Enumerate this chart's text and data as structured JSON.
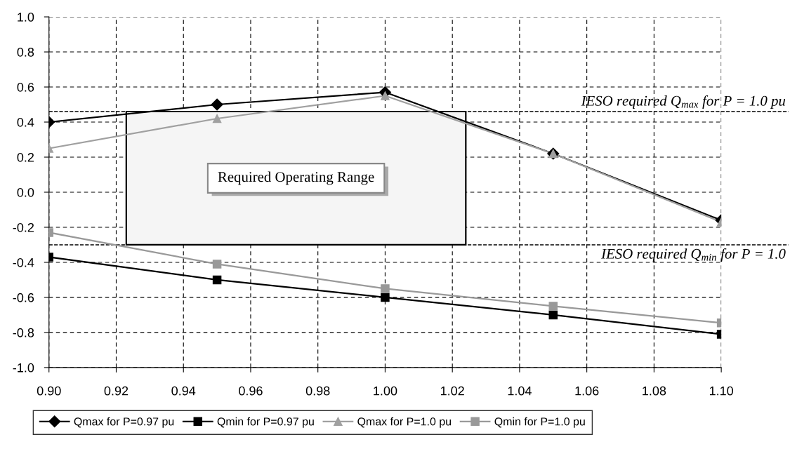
{
  "chart_data": {
    "type": "line",
    "x": [
      0.9,
      0.95,
      1.0,
      1.05,
      1.1
    ],
    "series": [
      {
        "name": "Qmax for P=0.97 pu",
        "color": "#000000",
        "marker": "diamond",
        "values": [
          0.4,
          0.5,
          0.57,
          0.22,
          -0.16
        ]
      },
      {
        "name": "Qmin for P=0.97 pu",
        "color": "#000000",
        "marker": "square",
        "values": [
          -0.37,
          -0.5,
          -0.6,
          -0.7,
          -0.81
        ]
      },
      {
        "name": "Qmax for P=1.0 pu",
        "color": "#a0a0a0",
        "marker": "triangle",
        "values": [
          0.25,
          0.42,
          0.55,
          0.22,
          -0.17
        ]
      },
      {
        "name": "Qmin for P=1.0 pu",
        "color": "#999999",
        "marker": "square",
        "values": [
          -0.23,
          -0.41,
          -0.55,
          -0.65,
          -0.745
        ]
      }
    ],
    "xlim": [
      0.9,
      1.1
    ],
    "xticks": [
      {
        "value": 0.9,
        "label": "0.90"
      },
      {
        "value": 0.92,
        "label": "0.92"
      },
      {
        "value": 0.94,
        "label": "0.94"
      },
      {
        "value": 0.96,
        "label": "0.96"
      },
      {
        "value": 0.98,
        "label": "0.98"
      },
      {
        "value": 1.0,
        "label": "1.00"
      },
      {
        "value": 1.02,
        "label": "1.02"
      },
      {
        "value": 1.04,
        "label": "1.04"
      },
      {
        "value": 1.06,
        "label": "1.06"
      },
      {
        "value": 1.08,
        "label": "1.08"
      },
      {
        "value": 1.1,
        "label": "1.10"
      }
    ],
    "ylim": [
      -1.0,
      1.0
    ],
    "yticks": [
      {
        "value": 1.0,
        "label": "1.0"
      },
      0.8,
      0.6,
      0.4,
      0.2,
      {
        "value": 0.0,
        "label": "0.0"
      },
      -0.2,
      -0.4,
      -0.6,
      -0.8,
      {
        "value": -1.0,
        "label": "-1.0"
      }
    ],
    "ref_lines": [
      {
        "axis": "y",
        "value": 0.46,
        "color": "#000000",
        "line_style": "dashed"
      },
      {
        "axis": "y",
        "value": -0.3,
        "color": "#000000",
        "line_style": "dashed"
      }
    ],
    "annotations": [
      "IESO required Q$_{max}$ for P = 1.0 pu",
      "IESO required Q$_{min}$ for P = 1.0"
    ],
    "bands": [
      {
        "axis": "x",
        "from": 0.923,
        "to": 1.024,
        "label": "Required Operating Range",
        "color": "#f5f5f5"
      }
    ],
    "grid": true,
    "legend": "bottom",
    "line_style": "solid"
  }
}
